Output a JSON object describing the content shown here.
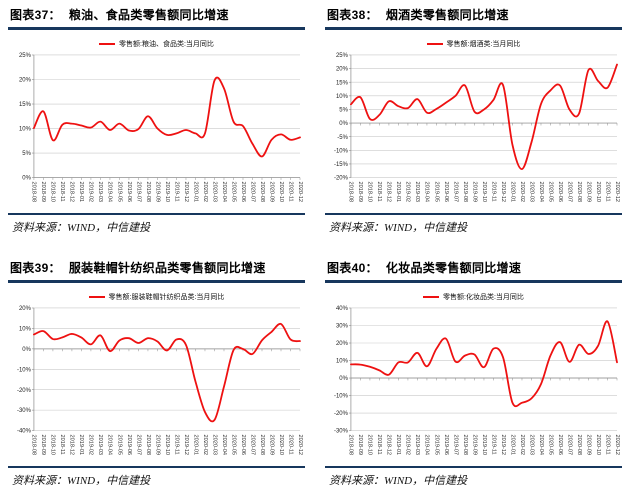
{
  "page": {
    "accent_navy": "#17375D",
    "line_red": "#EE1111",
    "grid_gray": "#C9C9C9",
    "axis_gray": "#8A8A8A",
    "background": "#FFFFFF"
  },
  "charts": [
    {
      "fig_no": "图表37：",
      "title": "粮油、食品类零售额同比增速",
      "legend": "零售额:粮油、食品类:当月同比",
      "source": "资料来源：WIND，中信建投"
    },
    {
      "fig_no": "图表38：",
      "title": "烟酒类零售额同比增速",
      "legend": "零售额:烟酒类:当月同比",
      "source": "资料来源：WIND，中信建投"
    },
    {
      "fig_no": "图表39：",
      "title": "服装鞋帽针纺织品类零售额同比增速",
      "legend": "零售额:服装鞋帽针纺织品类:当月同比",
      "source": "资料来源：WIND，中信建投"
    },
    {
      "fig_no": "图表40：",
      "title": "化妆品类零售额同比增速",
      "legend": "零售额:化妆品类:当月同比",
      "source": "资料来源：WIND，中信建投"
    }
  ],
  "chart_data": [
    {
      "type": "line",
      "title": "粮油、食品类零售额同比增速",
      "legend": [
        "零售额:粮油、食品类:当月同比"
      ],
      "legend_position": "top",
      "grid": true,
      "line_color": "#EE1111",
      "ylim": [
        0,
        25
      ],
      "yticks": [
        25,
        20,
        15,
        10,
        5,
        0
      ],
      "x": [
        "2018-08",
        "2018-09",
        "2018-10",
        "2018-11",
        "2018-12",
        "2019-01",
        "2019-02",
        "2019-03",
        "2019-04",
        "2019-05",
        "2019-06",
        "2019-07",
        "2019-08",
        "2019-09",
        "2019-10",
        "2019-11",
        "2019-12",
        "2020-01",
        "2020-02",
        "2020-03",
        "2020-04",
        "2020-05",
        "2020-06",
        "2020-07",
        "2020-08",
        "2020-09",
        "2020-10",
        "2020-11",
        "2020-12"
      ],
      "values": [
        10.1,
        13.5,
        7.6,
        10.8,
        11.0,
        10.6,
        10.2,
        11.4,
        9.7,
        11.0,
        9.6,
        9.9,
        12.5,
        10.0,
        8.7,
        9.0,
        9.7,
        9.0,
        9.0,
        19.8,
        18.2,
        11.4,
        10.5,
        6.9,
        4.3,
        7.7,
        8.8,
        7.7,
        8.2
      ]
    },
    {
      "type": "line",
      "title": "烟酒类零售额同比增速",
      "legend": [
        "零售额:烟酒类:当月同比"
      ],
      "legend_position": "top",
      "grid": true,
      "line_color": "#EE1111",
      "ylim": [
        -20,
        25
      ],
      "yticks": [
        25,
        20,
        15,
        10,
        5,
        0,
        -5,
        -10,
        -15,
        -20
      ],
      "x": [
        "2018-08",
        "2018-09",
        "2018-10",
        "2018-11",
        "2018-12",
        "2019-01",
        "2019-02",
        "2019-03",
        "2019-04",
        "2019-05",
        "2019-06",
        "2019-07",
        "2019-08",
        "2019-09",
        "2019-10",
        "2019-11",
        "2019-12",
        "2020-01",
        "2020-02",
        "2020-03",
        "2020-04",
        "2020-05",
        "2020-06",
        "2020-07",
        "2020-08",
        "2020-09",
        "2020-10",
        "2020-11",
        "2020-12"
      ],
      "values": [
        6.9,
        9.5,
        1.5,
        3.0,
        8.0,
        6.2,
        5.5,
        8.8,
        3.8,
        5.2,
        7.5,
        10.0,
        13.8,
        4.2,
        5.0,
        8.5,
        14.0,
        -8.0,
        -16.9,
        -7.0,
        7.0,
        12.0,
        13.8,
        5.0,
        3.5,
        19.5,
        15.5,
        13.0,
        21.5
      ]
    },
    {
      "type": "line",
      "title": "服装鞋帽针纺织品类零售额同比增速",
      "legend": [
        "零售额:服装鞋帽针纺织品类:当月同比"
      ],
      "legend_position": "top",
      "grid": true,
      "line_color": "#EE1111",
      "ylim": [
        -40,
        20
      ],
      "yticks": [
        20,
        10,
        0,
        -10,
        -20,
        -30,
        -40
      ],
      "x": [
        "2018-08",
        "2018-09",
        "2018-10",
        "2018-11",
        "2018-12",
        "2019-01",
        "2019-02",
        "2019-03",
        "2019-04",
        "2019-05",
        "2019-06",
        "2019-07",
        "2019-08",
        "2019-09",
        "2019-10",
        "2019-11",
        "2019-12",
        "2020-01",
        "2020-02",
        "2020-03",
        "2020-04",
        "2020-05",
        "2020-06",
        "2020-07",
        "2020-08",
        "2020-09",
        "2020-10",
        "2020-11",
        "2020-12"
      ],
      "values": [
        7.0,
        8.7,
        4.8,
        5.6,
        7.3,
        5.5,
        2.2,
        6.6,
        -1.1,
        4.1,
        5.2,
        2.9,
        5.2,
        3.6,
        -0.8,
        4.6,
        1.9,
        -16.0,
        -30.9,
        -34.8,
        -18.5,
        -0.6,
        -0.1,
        -2.5,
        4.2,
        8.3,
        12.2,
        4.6,
        3.8
      ]
    },
    {
      "type": "line",
      "title": "化妆品类零售额同比增速",
      "legend": [
        "零售额:化妆品类:当月同比"
      ],
      "legend_position": "top",
      "grid": true,
      "line_color": "#EE1111",
      "ylim": [
        -30,
        40
      ],
      "yticks": [
        40,
        30,
        20,
        10,
        0,
        -10,
        -20,
        -30
      ],
      "x": [
        "2018-08",
        "2018-09",
        "2018-10",
        "2018-11",
        "2018-12",
        "2019-01",
        "2019-02",
        "2019-03",
        "2019-04",
        "2019-05",
        "2019-06",
        "2019-07",
        "2019-08",
        "2019-09",
        "2019-10",
        "2019-11",
        "2019-12",
        "2020-01",
        "2020-02",
        "2020-03",
        "2020-04",
        "2020-05",
        "2020-06",
        "2020-07",
        "2020-08",
        "2020-09",
        "2020-10",
        "2020-11",
        "2020-12"
      ],
      "values": [
        7.8,
        7.7,
        6.4,
        4.4,
        1.9,
        8.9,
        8.9,
        14.4,
        6.7,
        16.7,
        22.5,
        9.4,
        12.8,
        13.4,
        6.2,
        16.8,
        11.9,
        -14.1,
        -14.1,
        -11.6,
        -3.5,
        12.9,
        20.5,
        9.2,
        19.0,
        13.7,
        18.3,
        32.3,
        9.0
      ]
    }
  ]
}
